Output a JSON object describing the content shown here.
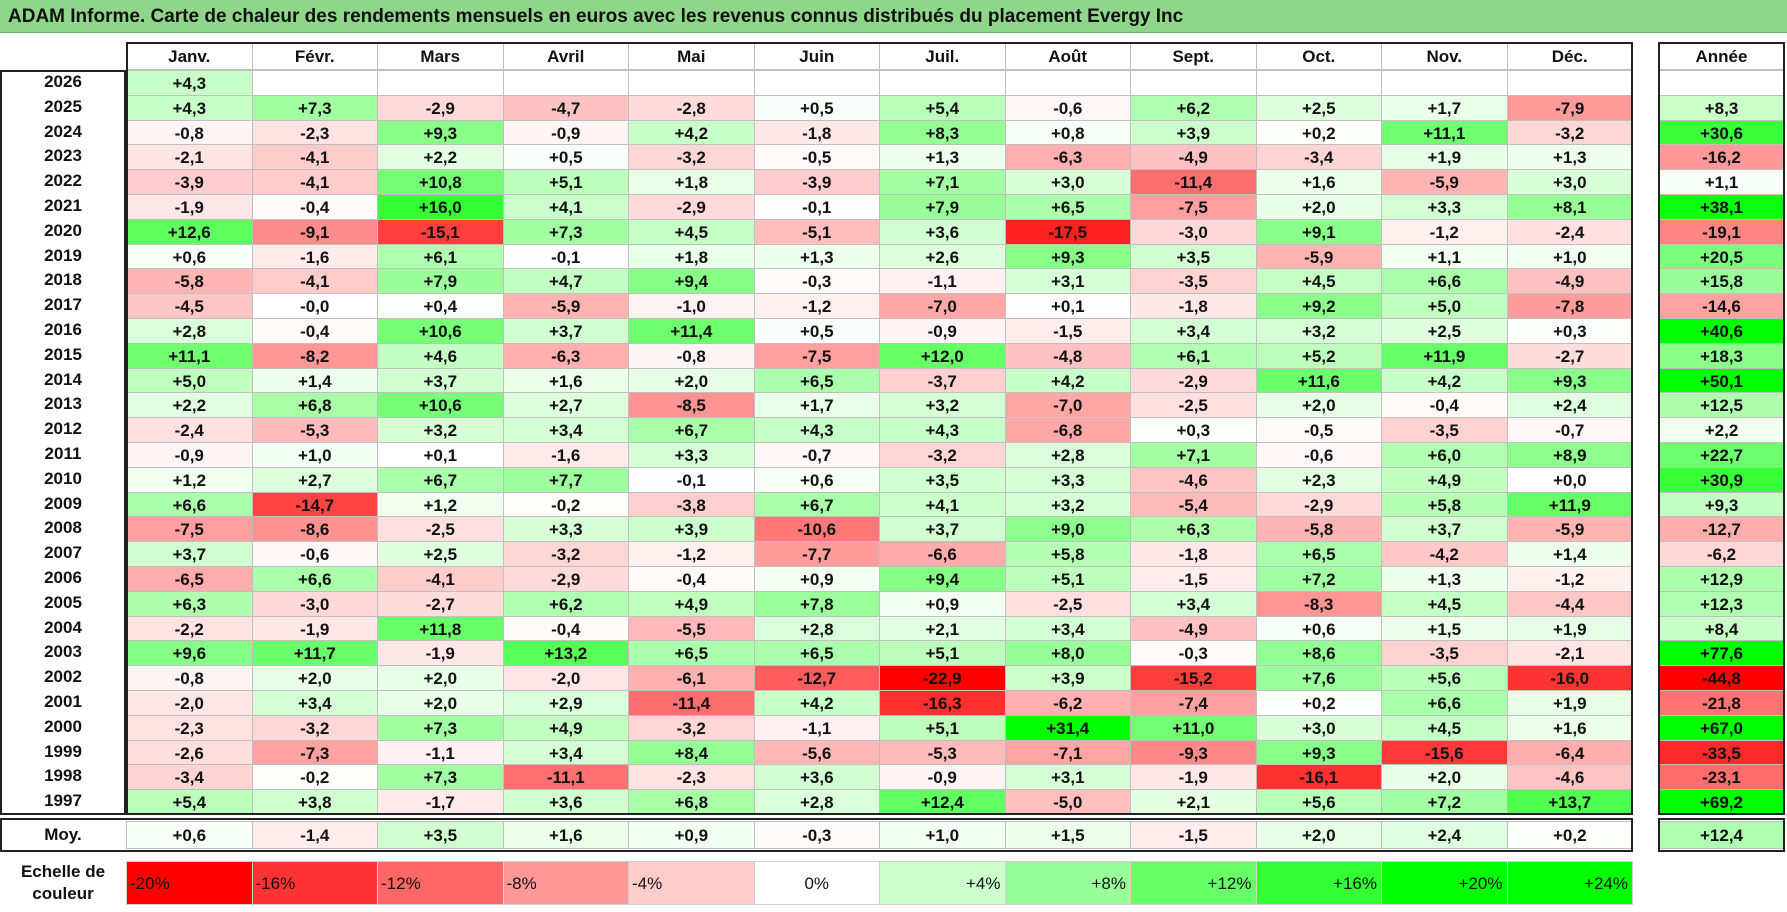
{
  "title": "ADAM Informe. Carte de chaleur des rendements mensuels en euros avec les revenus connus distribués du placement Evergy Inc",
  "chart_data": {
    "type": "heatmap",
    "title": "ADAM Informe. Carte de chaleur des rendements mensuels en euros avec les revenus connus distribués du placement Evergy Inc",
    "columns": [
      "Janv.",
      "Févr.",
      "Mars",
      "Avril",
      "Mai",
      "Juin",
      "Juil.",
      "Août",
      "Sept.",
      "Oct.",
      "Nov.",
      "Déc."
    ],
    "year_column_label": "Année",
    "rows": [
      {
        "year": "2026",
        "months": [
          "+4,3",
          "",
          "",
          "",
          "",
          "",
          "",
          "",
          "",
          "",
          "",
          ""
        ],
        "annual": ""
      },
      {
        "year": "2025",
        "months": [
          "+4,3",
          "+7,3",
          "-2,9",
          "-4,7",
          "-2,8",
          "+0,5",
          "+5,4",
          "-0,6",
          "+6,2",
          "+2,5",
          "+1,7",
          "-7,9"
        ],
        "annual": "+8,3"
      },
      {
        "year": "2024",
        "months": [
          "-0,8",
          "-2,3",
          "+9,3",
          "-0,9",
          "+4,2",
          "-1,8",
          "+8,3",
          "+0,8",
          "+3,9",
          "+0,2",
          "+11,1",
          "-3,2"
        ],
        "annual": "+30,6"
      },
      {
        "year": "2023",
        "months": [
          "-2,1",
          "-4,1",
          "+2,2",
          "+0,5",
          "-3,2",
          "-0,5",
          "+1,3",
          "-6,3",
          "-4,9",
          "-3,4",
          "+1,9",
          "+1,3"
        ],
        "annual": "-16,2"
      },
      {
        "year": "2022",
        "months": [
          "-3,9",
          "-4,1",
          "+10,8",
          "+5,1",
          "+1,8",
          "-3,9",
          "+7,1",
          "+3,0",
          "-11,4",
          "+1,6",
          "-5,9",
          "+3,0"
        ],
        "annual": "+1,1"
      },
      {
        "year": "2021",
        "months": [
          "-1,9",
          "-0,4",
          "+16,0",
          "+4,1",
          "-2,9",
          "-0,1",
          "+7,9",
          "+6,5",
          "-7,5",
          "+2,0",
          "+3,3",
          "+8,1"
        ],
        "annual": "+38,1"
      },
      {
        "year": "2020",
        "months": [
          "+12,6",
          "-9,1",
          "-15,1",
          "+7,3",
          "+4,5",
          "-5,1",
          "+3,6",
          "-17,5",
          "-3,0",
          "+9,1",
          "-1,2",
          "-2,4"
        ],
        "annual": "-19,1"
      },
      {
        "year": "2019",
        "months": [
          "+0,6",
          "-1,6",
          "+6,1",
          "-0,1",
          "+1,8",
          "+1,3",
          "+2,6",
          "+9,3",
          "+3,5",
          "-5,9",
          "+1,1",
          "+1,0"
        ],
        "annual": "+20,5"
      },
      {
        "year": "2018",
        "months": [
          "-5,8",
          "-4,1",
          "+7,9",
          "+4,7",
          "+9,4",
          "-0,3",
          "-1,1",
          "+3,1",
          "-3,5",
          "+4,5",
          "+6,6",
          "-4,9"
        ],
        "annual": "+15,8"
      },
      {
        "year": "2017",
        "months": [
          "-4,5",
          "-0,0",
          "+0,4",
          "-5,9",
          "-1,0",
          "-1,2",
          "-7,0",
          "+0,1",
          "-1,8",
          "+9,2",
          "+5,0",
          "-7,8"
        ],
        "annual": "-14,6"
      },
      {
        "year": "2016",
        "months": [
          "+2,8",
          "-0,4",
          "+10,6",
          "+3,7",
          "+11,4",
          "+0,5",
          "-0,9",
          "-1,5",
          "+3,4",
          "+3,2",
          "+2,5",
          "+0,3"
        ],
        "annual": "+40,6"
      },
      {
        "year": "2015",
        "months": [
          "+11,1",
          "-8,2",
          "+4,6",
          "-6,3",
          "-0,8",
          "-7,5",
          "+12,0",
          "-4,8",
          "+6,1",
          "+5,2",
          "+11,9",
          "-2,7"
        ],
        "annual": "+18,3"
      },
      {
        "year": "2014",
        "months": [
          "+5,0",
          "+1,4",
          "+3,7",
          "+1,6",
          "+2,0",
          "+6,5",
          "-3,7",
          "+4,2",
          "-2,9",
          "+11,6",
          "+4,2",
          "+9,3"
        ],
        "annual": "+50,1"
      },
      {
        "year": "2013",
        "months": [
          "+2,2",
          "+6,8",
          "+10,6",
          "+2,7",
          "-8,5",
          "+1,7",
          "+3,2",
          "-7,0",
          "-2,5",
          "+2,0",
          "-0,4",
          "+2,4"
        ],
        "annual": "+12,5"
      },
      {
        "year": "2012",
        "months": [
          "-2,4",
          "-5,3",
          "+3,2",
          "+3,4",
          "+6,7",
          "+4,3",
          "+4,3",
          "-6,8",
          "+0,3",
          "-0,5",
          "-3,5",
          "-0,7"
        ],
        "annual": "+2,2"
      },
      {
        "year": "2011",
        "months": [
          "-0,9",
          "+1,0",
          "+0,1",
          "-1,6",
          "+3,3",
          "-0,7",
          "-3,2",
          "+2,8",
          "+7,1",
          "-0,6",
          "+6,0",
          "+8,9"
        ],
        "annual": "+22,7"
      },
      {
        "year": "2010",
        "months": [
          "+1,2",
          "+2,7",
          "+6,7",
          "+7,7",
          "-0,1",
          "+0,6",
          "+3,5",
          "+3,3",
          "-4,6",
          "+2,3",
          "+4,9",
          "+0,0"
        ],
        "annual": "+30,9"
      },
      {
        "year": "2009",
        "months": [
          "+6,6",
          "-14,7",
          "+1,2",
          "-0,2",
          "-3,8",
          "+6,7",
          "+4,1",
          "+3,2",
          "-5,4",
          "-2,9",
          "+5,8",
          "+11,9"
        ],
        "annual": "+9,3"
      },
      {
        "year": "2008",
        "months": [
          "-7,5",
          "-8,6",
          "-2,5",
          "+3,3",
          "+3,9",
          "-10,6",
          "+3,7",
          "+9,0",
          "+6,3",
          "-5,8",
          "+3,7",
          "-5,9"
        ],
        "annual": "-12,7"
      },
      {
        "year": "2007",
        "months": [
          "+3,7",
          "-0,6",
          "+2,5",
          "-3,2",
          "-1,2",
          "-7,7",
          "-6,6",
          "+5,8",
          "-1,8",
          "+6,5",
          "-4,2",
          "+1,4"
        ],
        "annual": "-6,2"
      },
      {
        "year": "2006",
        "months": [
          "-6,5",
          "+6,6",
          "-4,1",
          "-2,9",
          "-0,4",
          "+0,9",
          "+9,4",
          "+5,1",
          "-1,5",
          "+7,2",
          "+1,3",
          "-1,2"
        ],
        "annual": "+12,9"
      },
      {
        "year": "2005",
        "months": [
          "+6,3",
          "-3,0",
          "-2,7",
          "+6,2",
          "+4,9",
          "+7,8",
          "+0,9",
          "-2,5",
          "+3,4",
          "-8,3",
          "+4,5",
          "-4,4"
        ],
        "annual": "+12,3"
      },
      {
        "year": "2004",
        "months": [
          "-2,2",
          "-1,9",
          "+11,8",
          "-0,4",
          "-5,5",
          "+2,8",
          "+2,1",
          "+3,4",
          "-4,9",
          "+0,6",
          "+1,5",
          "+1,9"
        ],
        "annual": "+8,4"
      },
      {
        "year": "2003",
        "months": [
          "+9,6",
          "+11,7",
          "-1,9",
          "+13,2",
          "+6,5",
          "+6,5",
          "+5,1",
          "+8,0",
          "-0,3",
          "+8,6",
          "-3,5",
          "-2,1"
        ],
        "annual": "+77,6"
      },
      {
        "year": "2002",
        "months": [
          "-0,8",
          "+2,0",
          "+2,0",
          "-2,0",
          "-6,1",
          "-12,7",
          "-22,9",
          "+3,9",
          "-15,2",
          "+7,6",
          "+5,6",
          "-16,0"
        ],
        "annual": "-44,8"
      },
      {
        "year": "2001",
        "months": [
          "-2,0",
          "+3,4",
          "+2,0",
          "+2,9",
          "-11,4",
          "+4,2",
          "-16,3",
          "-6,2",
          "-7,4",
          "+0,2",
          "+6,6",
          "+1,9"
        ],
        "annual": "-21,8"
      },
      {
        "year": "2000",
        "months": [
          "-2,3",
          "-3,2",
          "+7,3",
          "+4,9",
          "-3,2",
          "-1,1",
          "+5,1",
          "+31,4",
          "+11,0",
          "+3,0",
          "+4,5",
          "+1,6"
        ],
        "annual": "+67,0"
      },
      {
        "year": "1999",
        "months": [
          "-2,6",
          "-7,3",
          "-1,1",
          "+3,4",
          "+8,4",
          "-5,6",
          "-5,3",
          "-7,1",
          "-9,3",
          "+9,3",
          "-15,6",
          "-6,4"
        ],
        "annual": "-33,5"
      },
      {
        "year": "1998",
        "months": [
          "-3,4",
          "-0,2",
          "+7,3",
          "-11,1",
          "-2,3",
          "+3,6",
          "-0,9",
          "+3,1",
          "-1,9",
          "-16,1",
          "+2,0",
          "-4,6"
        ],
        "annual": "-23,1"
      },
      {
        "year": "1997",
        "months": [
          "+5,4",
          "+3,8",
          "-1,7",
          "+3,6",
          "+6,8",
          "+2,8",
          "+12,4",
          "-5,0",
          "+2,1",
          "+5,6",
          "+7,2",
          "+13,7"
        ],
        "annual": "+69,2"
      }
    ],
    "average": {
      "label": "Moy.",
      "months": [
        "+0,6",
        "-1,4",
        "+3,5",
        "+1,6",
        "+0,9",
        "-0,3",
        "+1,0",
        "+1,5",
        "-1,5",
        "+2,0",
        "+2,4",
        "+0,2"
      ],
      "annual": "+12,4"
    },
    "scale": {
      "label_line1": "Echelle de",
      "label_line2": "couleur",
      "steps": [
        {
          "label": "-20%",
          "color": "#ff0000"
        },
        {
          "label": "-16%",
          "color": "#ff3333"
        },
        {
          "label": "-12%",
          "color": "#ff6666"
        },
        {
          "label": "-8%",
          "color": "#ff9999"
        },
        {
          "label": "-4%",
          "color": "#ffcccc"
        },
        {
          "label": "0%",
          "color": "#ffffff"
        },
        {
          "label": "+4%",
          "color": "#ccffcc"
        },
        {
          "label": "+8%",
          "color": "#99ff99"
        },
        {
          "label": "+12%",
          "color": "#66ff66"
        },
        {
          "label": "+16%",
          "color": "#33ff33"
        },
        {
          "label": "+20%",
          "color": "#00ff00"
        },
        {
          "label": "+24%",
          "color": "#00ff00"
        }
      ]
    },
    "color_scale": {
      "negative_max": "#ff0000",
      "neutral": "#ffffff",
      "positive_max": "#00ff00",
      "monthly_saturation_pct": 20,
      "annual_saturation_pct": 40
    }
  }
}
